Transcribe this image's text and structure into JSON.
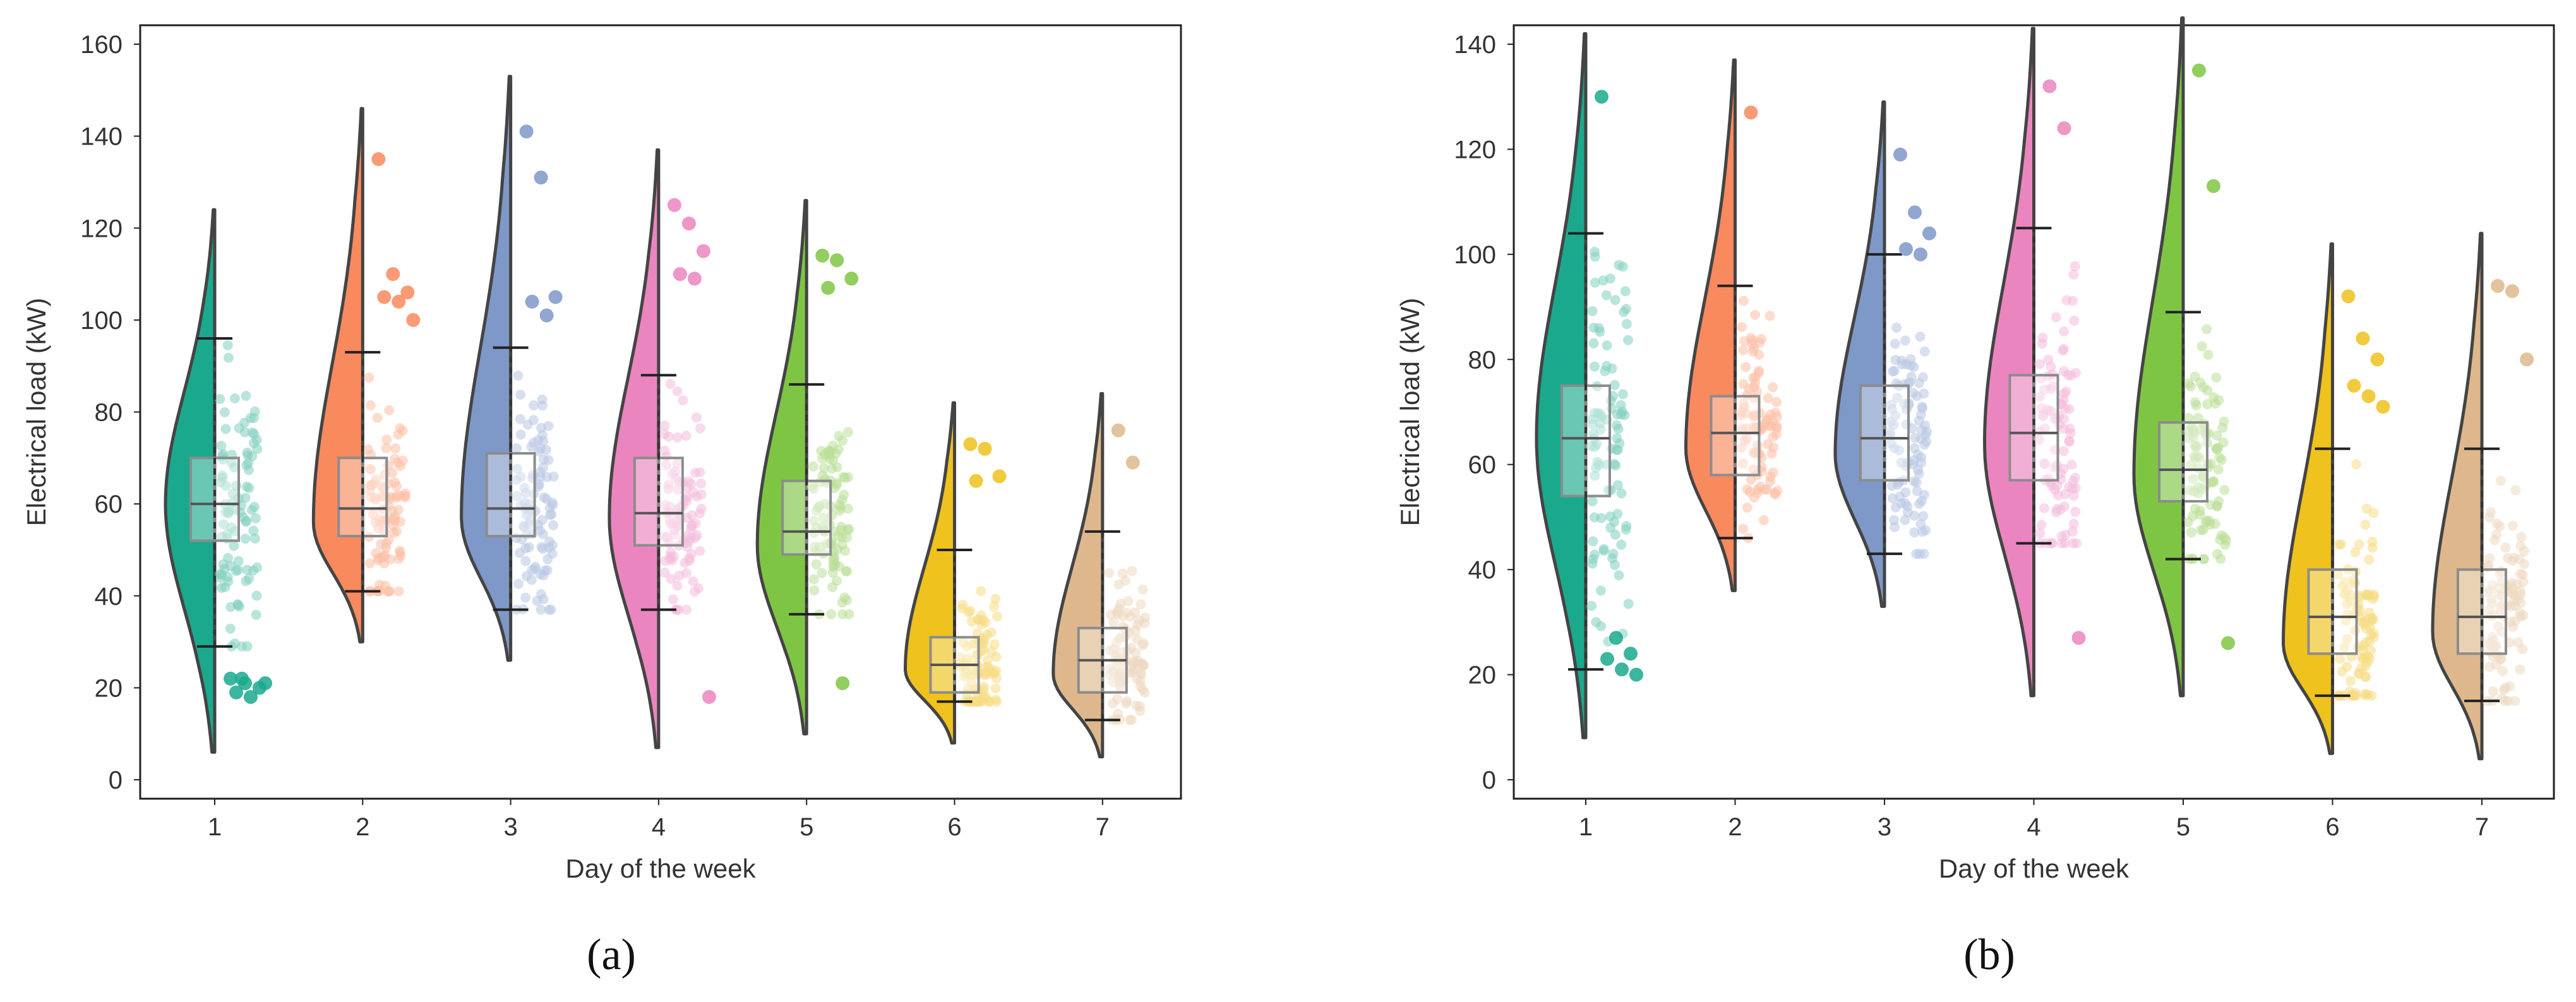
{
  "figure": {
    "panels": [
      {
        "label": "(a)"
      },
      {
        "label": "(b)"
      }
    ]
  },
  "colors": [
    "#1aa98d",
    "#f98a5e",
    "#7e98c8",
    "#eb85c0",
    "#7fc544",
    "#efc21d",
    "#deb88c"
  ],
  "chart_data": [
    {
      "type": "violin",
      "panel": "(a)",
      "title": "",
      "xlabel": "Day of the week",
      "ylabel": "Electrical load (kW)",
      "ylim": [
        0,
        160
      ],
      "yticks": [
        0,
        20,
        40,
        60,
        80,
        100,
        120,
        140,
        160
      ],
      "categories": [
        "1",
        "2",
        "3",
        "4",
        "5",
        "6",
        "7"
      ],
      "series": [
        {
          "name": "1",
          "violin_min": 6,
          "violin_max": 124,
          "mode": 60,
          "whisker_low": 29,
          "whisker_high": 96,
          "q1": 52,
          "median": 60,
          "q3": 70,
          "outliers": [
            22,
            21,
            20,
            19,
            18,
            21,
            22
          ]
        },
        {
          "name": "2",
          "violin_min": 30,
          "violin_max": 146,
          "mode": 56,
          "whisker_low": 41,
          "whisker_high": 93,
          "q1": 53,
          "median": 59,
          "q3": 70,
          "outliers": [
            135,
            110,
            106,
            105,
            104,
            100
          ]
        },
        {
          "name": "3",
          "violin_min": 26,
          "violin_max": 153,
          "mode": 57,
          "whisker_low": 37,
          "whisker_high": 94,
          "q1": 53,
          "median": 59,
          "q3": 71,
          "outliers": [
            141,
            131,
            105,
            104,
            101
          ]
        },
        {
          "name": "4",
          "violin_min": 7,
          "violin_max": 137,
          "mode": 57,
          "whisker_low": 37,
          "whisker_high": 88,
          "q1": 51,
          "median": 58,
          "q3": 70,
          "outliers": [
            125,
            121,
            115,
            110,
            109,
            18
          ]
        },
        {
          "name": "5",
          "violin_min": 10,
          "violin_max": 126,
          "mode": 51,
          "whisker_low": 36,
          "whisker_high": 86,
          "q1": 49,
          "median": 54,
          "q3": 65,
          "outliers": [
            114,
            113,
            109,
            107,
            21
          ]
        },
        {
          "name": "6",
          "violin_min": 8,
          "violin_max": 82,
          "mode": 24,
          "whisker_low": 17,
          "whisker_high": 50,
          "q1": 19,
          "median": 25,
          "q3": 31,
          "outliers": [
            73,
            72,
            66,
            65
          ]
        },
        {
          "name": "7",
          "violin_min": 5,
          "violin_max": 84,
          "mode": 23,
          "whisker_low": 13,
          "whisker_high": 54,
          "q1": 19,
          "median": 26,
          "q3": 33,
          "outliers": [
            76,
            69
          ]
        }
      ]
    },
    {
      "type": "violin",
      "panel": "(b)",
      "title": "",
      "xlabel": "Day of the week",
      "ylabel": "Electrical load (kW)",
      "ylim": [
        0,
        140
      ],
      "yticks": [
        0,
        20,
        40,
        60,
        80,
        100,
        120,
        140
      ],
      "categories": [
        "1",
        "2",
        "3",
        "4",
        "5",
        "6",
        "7"
      ],
      "series": [
        {
          "name": "1",
          "violin_min": 8,
          "violin_max": 142,
          "mode": 65,
          "whisker_low": 21,
          "whisker_high": 104,
          "q1": 54,
          "median": 65,
          "q3": 75,
          "outliers": [
            130,
            27,
            24,
            23,
            21,
            20
          ]
        },
        {
          "name": "2",
          "violin_min": 36,
          "violin_max": 137,
          "mode": 63,
          "whisker_low": 46,
          "whisker_high": 94,
          "q1": 58,
          "median": 66,
          "q3": 73,
          "outliers": [
            127
          ]
        },
        {
          "name": "3",
          "violin_min": 33,
          "violin_max": 129,
          "mode": 62,
          "whisker_low": 43,
          "whisker_high": 100,
          "q1": 57,
          "median": 65,
          "q3": 75,
          "outliers": [
            119,
            108,
            104,
            101,
            100
          ]
        },
        {
          "name": "4",
          "violin_min": 16,
          "violin_max": 143,
          "mode": 64,
          "whisker_low": 45,
          "whisker_high": 105,
          "q1": 57,
          "median": 66,
          "q3": 77,
          "outliers": [
            132,
            124,
            27
          ]
        },
        {
          "name": "5",
          "violin_min": 16,
          "violin_max": 145,
          "mode": 58,
          "whisker_low": 42,
          "whisker_high": 89,
          "q1": 53,
          "median": 59,
          "q3": 68,
          "outliers": [
            135,
            113,
            26
          ]
        },
        {
          "name": "6",
          "violin_min": 5,
          "violin_max": 102,
          "mode": 26,
          "whisker_low": 16,
          "whisker_high": 63,
          "q1": 24,
          "median": 31,
          "q3": 40,
          "outliers": [
            92,
            84,
            80,
            75,
            73,
            71
          ]
        },
        {
          "name": "7",
          "violin_min": 4,
          "violin_max": 104,
          "mode": 28,
          "whisker_low": 15,
          "whisker_high": 63,
          "q1": 24,
          "median": 31,
          "q3": 40,
          "outliers": [
            94,
            93,
            80
          ]
        }
      ]
    }
  ]
}
